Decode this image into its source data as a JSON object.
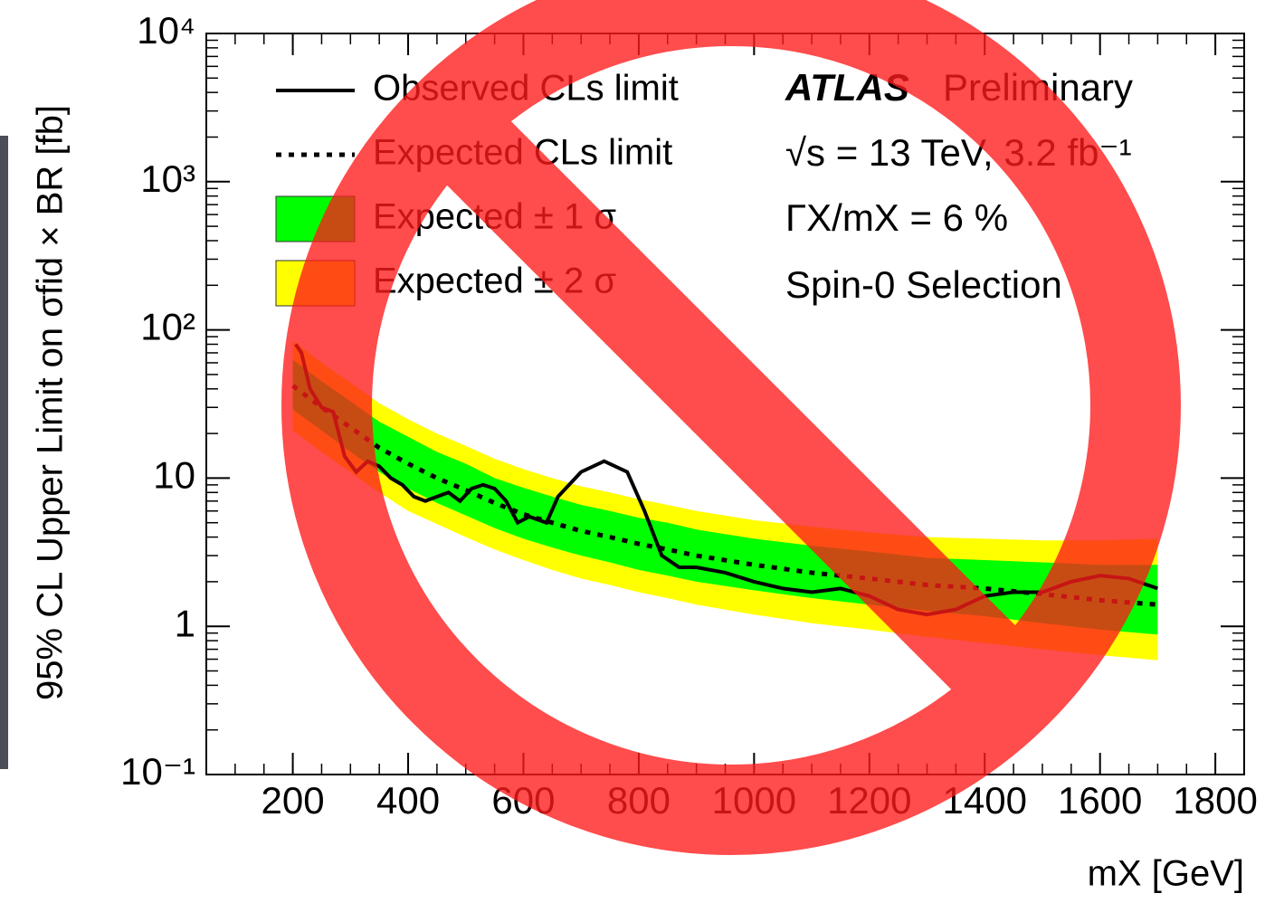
{
  "chart_data": {
    "type": "limit",
    "y_label": "95% CL Upper Limit on σfid × BR [fb]",
    "x_label": "mX [GeV]",
    "annotations": [
      "ATLAS",
      "Preliminary",
      "√s = 13 TeV, 3.2 fb⁻¹",
      "ΓX/mX = 6 %",
      "Spin-0 Selection"
    ],
    "log_y": true,
    "xlim": [
      50,
      1850
    ],
    "ylim": [
      0.1,
      10000
    ],
    "xticks": [
      200,
      400,
      600,
      800,
      1000,
      1200,
      1400,
      1600,
      1800
    ],
    "yticks": [
      {
        "value": 0.1,
        "label": "10⁻¹"
      },
      1,
      10,
      {
        "value": 100,
        "label": "10²"
      },
      {
        "value": 1000,
        "label": "10³"
      },
      {
        "value": 10000,
        "label": "10⁴"
      }
    ],
    "legend": "top-left",
    "x": [
      200,
      250,
      300,
      350,
      400,
      450,
      500,
      550,
      600,
      650,
      700,
      750,
      800,
      850,
      900,
      1000,
      1100,
      1200,
      1300,
      1400,
      1500,
      1600,
      1700
    ],
    "series": [
      {
        "name": "Expected ± 2 σ",
        "color": "#ffff00",
        "style": "band",
        "high": [
          85,
          60,
          44,
          32,
          25,
          20,
          16.5,
          13.5,
          11.5,
          10,
          8.8,
          8,
          7.2,
          6.6,
          6,
          5.2,
          4.7,
          4.3,
          4,
          3.9,
          3.8,
          3.8,
          3.9
        ],
        "low": [
          21,
          15,
          11,
          8,
          6,
          4.9,
          4,
          3.3,
          2.8,
          2.4,
          2.1,
          1.9,
          1.7,
          1.55,
          1.4,
          1.2,
          1.05,
          0.95,
          0.85,
          0.77,
          0.7,
          0.64,
          0.59
        ]
      },
      {
        "name": "Expected ± 1 σ",
        "color": "#00ff00",
        "style": "band",
        "high": [
          63,
          45,
          33,
          24,
          19,
          15,
          12.5,
          10,
          8.6,
          7.5,
          6.6,
          6,
          5.4,
          5,
          4.5,
          3.9,
          3.5,
          3.2,
          2.9,
          2.8,
          2.7,
          2.6,
          2.6
        ],
        "low": [
          29,
          21,
          15,
          11,
          8.5,
          6.8,
          5.6,
          4.6,
          3.9,
          3.4,
          3,
          2.7,
          2.4,
          2.2,
          2,
          1.75,
          1.55,
          1.4,
          1.27,
          1.17,
          1.05,
          0.95,
          0.88
        ]
      },
      {
        "name": "Expected CLs limit",
        "color": "#000000",
        "style": "dotted",
        "values": [
          42,
          30,
          22,
          16,
          12.5,
          10,
          8.3,
          6.8,
          5.7,
          5,
          4.4,
          4,
          3.6,
          3.3,
          3,
          2.6,
          2.3,
          2.1,
          1.9,
          1.8,
          1.65,
          1.5,
          1.4
        ]
      },
      {
        "name": "Observed CLs limit",
        "color": "#000000",
        "style": "solid",
        "x": [
          205,
          215,
          230,
          250,
          270,
          290,
          310,
          330,
          350,
          370,
          390,
          410,
          430,
          450,
          470,
          490,
          510,
          530,
          550,
          570,
          590,
          610,
          640,
          660,
          700,
          740,
          780,
          810,
          840,
          870,
          900,
          950,
          1000,
          1050,
          1100,
          1150,
          1200,
          1250,
          1300,
          1350,
          1400,
          1450,
          1500,
          1550,
          1600,
          1650,
          1700
        ],
        "values": [
          80,
          70,
          40,
          30,
          28,
          14,
          11,
          13,
          12,
          10,
          9,
          7.5,
          7,
          7.5,
          8,
          7,
          8.5,
          9,
          8.5,
          7,
          5,
          5.5,
          5,
          7.5,
          11,
          13,
          11,
          6,
          3,
          2.5,
          2.5,
          2.3,
          2.0,
          1.8,
          1.7,
          1.8,
          1.6,
          1.3,
          1.2,
          1.3,
          1.6,
          1.7,
          1.7,
          2.0,
          2.2,
          2.1,
          1.8
        ]
      }
    ]
  }
}
